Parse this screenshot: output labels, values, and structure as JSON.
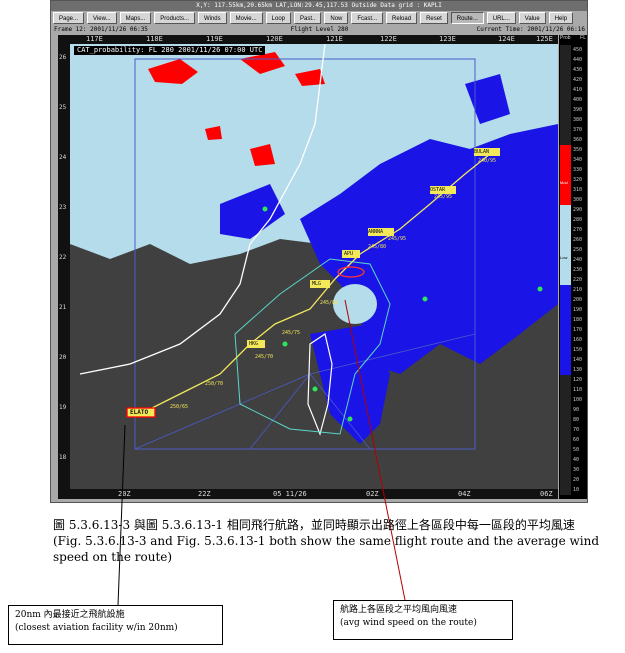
{
  "window": {
    "title": "X,Y: 117.55km,20.65km   LAT,LON:29.45,117.53   Outside Data grid : KAPLI"
  },
  "toolbar": {
    "buttons": [
      "Page...",
      "View...",
      "Maps...",
      "Products...",
      "Winds",
      "Movie...",
      "Loop",
      "Past..",
      "Now",
      "Fcast...",
      "Reload",
      "Reset",
      "Route...",
      "URL...",
      "Value",
      "Help"
    ]
  },
  "status": {
    "frame": "Frame 12: 2001/11/26 06:35",
    "level": "Flight Level 280",
    "current_time": "Current Time: 2001/11/26 06:16"
  },
  "map": {
    "product_title": "CAT_probability: FL 280 2001/11/26 07:00 UTC",
    "lon_labels": [
      "117E",
      "118E",
      "119E",
      "120E",
      "121E",
      "122E",
      "123E",
      "124E",
      "125E"
    ],
    "lat_labels": [
      "26",
      "25",
      "24",
      "23",
      "22",
      "21",
      "20",
      "19",
      "18"
    ],
    "bottom_labels": [
      "20Z",
      "22Z",
      "05 11/26",
      "02Z",
      "04Z",
      "06Z"
    ],
    "waypoints": [
      "BULAN",
      "OSTAR",
      "ANNNA",
      "APU",
      "MLG",
      "HKG",
      "ELATO"
    ],
    "wind_tags": [
      "240/95",
      "245/95",
      "245/95",
      "245/80",
      "245/80",
      "245/75",
      "245/70",
      "250/70",
      "250/65"
    ],
    "colors": {
      "land": "#404040",
      "cat_low": "#b4dcea",
      "cat_high": "#1a14e6",
      "cat_red": "#ff0000",
      "route": "#f2e85a",
      "outline": "#5ad8c8"
    }
  },
  "scale": {
    "header_left": "Prob",
    "header_right": "FL",
    "labels": [
      "450",
      "440",
      "430",
      "420",
      "410",
      "400",
      "390",
      "380",
      "370",
      "360",
      "350",
      "340",
      "330",
      "320",
      "310",
      "300",
      "290",
      "280",
      "270",
      "260",
      "250",
      "240",
      "230",
      "220",
      "210",
      "200",
      "190",
      "180",
      "170",
      "160",
      "150",
      "140",
      "130",
      "120",
      "110",
      "100",
      "90",
      "80",
      "70",
      "60",
      "50",
      "40",
      "30",
      "20",
      "10"
    ],
    "mid_labels": [
      "Mod",
      "Low"
    ]
  },
  "caption": {
    "line1": "圖 5.3.6.13-3 與圖 5.3.6.13-1 相同飛行航路，並同時顯示出路徑上各區段中每一區段的平均風速",
    "line2": "(Fig. 5.3.6.13-3 and Fig. 5.3.6.13-1 both show the same flight route and the average wind speed on the route)"
  },
  "callouts": {
    "left_zh": "20nm 內最接近之飛航設施",
    "left_en": "(closest aviation facility w/in 20nm)",
    "right_zh": "航路上各區段之平均風向風速",
    "right_en": "(avg wind speed on the route)"
  }
}
